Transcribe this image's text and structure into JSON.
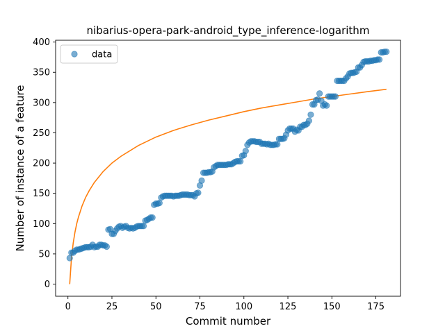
{
  "chart_data": {
    "type": "scatter",
    "title": "nibarius-opera-park-android_type_inference-logarithm",
    "xlabel": "Commit number",
    "ylabel": "Number of instance of a feature",
    "xlim": [
      -7,
      189
    ],
    "ylim": [
      -20,
      403
    ],
    "x_ticks": [
      0,
      25,
      50,
      75,
      100,
      125,
      150,
      175
    ],
    "y_ticks": [
      0,
      50,
      100,
      150,
      200,
      250,
      300,
      350,
      400
    ],
    "legend": {
      "position": "top-left",
      "entries": [
        "data"
      ]
    },
    "grid": false,
    "colors": {
      "data": "#1f77b4",
      "fit": "#ff7f0e"
    },
    "series": [
      {
        "name": "data",
        "kind": "scatter",
        "x": [
          1,
          2,
          3,
          4,
          5,
          6,
          7,
          8,
          9,
          10,
          11,
          12,
          13,
          14,
          15,
          16,
          17,
          18,
          19,
          20,
          21,
          22,
          23,
          24,
          25,
          26,
          27,
          28,
          29,
          30,
          31,
          32,
          33,
          34,
          35,
          36,
          37,
          38,
          39,
          40,
          41,
          42,
          43,
          44,
          45,
          46,
          47,
          48,
          49,
          50,
          51,
          52,
          53,
          54,
          55,
          56,
          57,
          58,
          59,
          60,
          61,
          62,
          63,
          64,
          65,
          66,
          67,
          68,
          69,
          70,
          71,
          72,
          73,
          74,
          75,
          76,
          77,
          78,
          79,
          80,
          81,
          82,
          83,
          84,
          85,
          86,
          87,
          88,
          89,
          90,
          91,
          92,
          93,
          94,
          95,
          96,
          97,
          98,
          99,
          100,
          101,
          102,
          103,
          104,
          105,
          106,
          107,
          108,
          109,
          110,
          111,
          112,
          113,
          114,
          115,
          116,
          117,
          118,
          119,
          120,
          121,
          122,
          123,
          124,
          125,
          126,
          127,
          128,
          129,
          130,
          131,
          132,
          133,
          134,
          135,
          136,
          137,
          138,
          139,
          140,
          141,
          142,
          143,
          144,
          145,
          146,
          147,
          148,
          149,
          150,
          151,
          152,
          153,
          154,
          155,
          156,
          157,
          158,
          159,
          160,
          161,
          162,
          163,
          164,
          165,
          166,
          167,
          168,
          169,
          170,
          171,
          172,
          173,
          174,
          175,
          176,
          177,
          178,
          179,
          180,
          181
        ],
        "y": [
          43,
          52,
          52,
          55,
          57,
          57,
          58,
          59,
          60,
          61,
          61,
          61,
          62,
          65,
          61,
          62,
          62,
          65,
          65,
          64,
          64,
          62,
          90,
          91,
          83,
          83,
          88,
          92,
          95,
          96,
          93,
          95,
          96,
          93,
          92,
          93,
          92,
          93,
          95,
          96,
          96,
          96,
          96,
          105,
          106,
          108,
          110,
          110,
          131,
          133,
          133,
          134,
          143,
          145,
          146,
          146,
          146,
          146,
          146,
          145,
          146,
          146,
          146,
          147,
          148,
          148,
          148,
          148,
          147,
          147,
          147,
          145,
          150,
          151,
          163,
          171,
          184,
          184,
          184,
          185,
          185,
          186,
          193,
          195,
          197,
          197,
          197,
          197,
          197,
          197,
          198,
          198,
          198,
          200,
          202,
          203,
          203,
          203,
          212,
          213,
          220,
          230,
          234,
          236,
          236,
          236,
          235,
          235,
          235,
          232,
          232,
          232,
          231,
          232,
          230,
          230,
          230,
          231,
          231,
          240,
          240,
          240,
          241,
          247,
          254,
          257,
          257,
          257,
          252,
          255,
          254,
          260,
          260,
          263,
          263,
          265,
          270,
          280,
          297,
          297,
          304,
          305,
          315,
          303,
          295,
          297,
          295,
          310,
          310,
          310,
          310,
          310,
          336,
          336,
          336,
          336,
          336,
          340,
          343,
          348,
          349,
          349,
          350,
          351,
          358,
          358,
          362,
          367,
          368,
          368,
          368,
          369,
          369,
          370,
          370,
          371,
          371,
          383,
          383,
          384,
          384
        ]
      },
      {
        "name": "",
        "kind": "line",
        "model": "logarithm",
        "x": [
          1,
          2,
          3,
          4,
          5,
          6,
          8,
          10,
          12,
          15,
          20,
          25,
          30,
          40,
          50,
          60,
          70,
          80,
          90,
          100,
          110,
          120,
          130,
          140,
          150,
          160,
          170,
          181
        ],
        "y": [
          0,
          43,
          68,
          86,
          100,
          111,
          129,
          143,
          154,
          168,
          186,
          200,
          211,
          229,
          243,
          254,
          263,
          271,
          278,
          285,
          291,
          296,
          301,
          306,
          310,
          314,
          318,
          322
        ]
      }
    ]
  }
}
